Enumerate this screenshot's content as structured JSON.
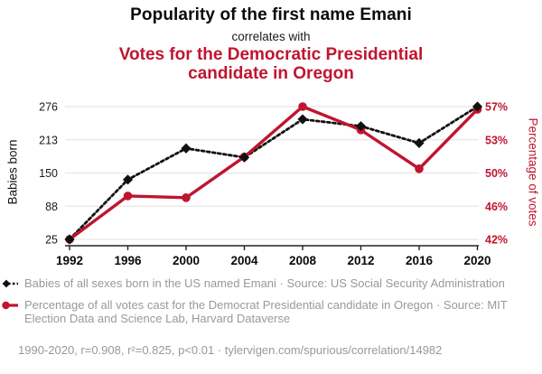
{
  "header": {
    "title": "Popularity of the first name Emani",
    "connector": "correlates with",
    "subtitle": "Votes for the Democratic Presidential candidate in Oregon"
  },
  "chart_data": {
    "type": "line",
    "x": [
      1992,
      1996,
      2000,
      2004,
      2008,
      2012,
      2016,
      2020
    ],
    "x_tick_labels": [
      "1992",
      "1996",
      "2000",
      "2004",
      "2008",
      "2012",
      "2016",
      "2020"
    ],
    "series": [
      {
        "name": "Babies of all sexes born in the US named Emani",
        "axis": "left",
        "color": "#111111",
        "line_style": "dotted",
        "marker": "diamond",
        "values": [
          25,
          138,
          197,
          180,
          252,
          239,
          207,
          276
        ]
      },
      {
        "name": "Percentage of all votes cast for the Democrat Presidential candidate in Oregon",
        "axis": "right",
        "color": "#c0152f",
        "line_style": "solid",
        "marker": "circle",
        "values": [
          42.48,
          47.15,
          46.96,
          51.35,
          56.75,
          54.24,
          50.07,
          56.45
        ]
      }
    ],
    "left_axis": {
      "label": "Babies born",
      "min": 25,
      "max": 276,
      "tick_labels": [
        "276",
        "213",
        "150",
        "88",
        "25"
      ]
    },
    "right_axis": {
      "label": "Percentage of votes",
      "min": 42.48,
      "max": 56.75,
      "tick_labels": [
        "57%",
        "53%",
        "50%",
        "46%",
        "42%"
      ]
    },
    "grid": true,
    "legend_position": "bottom"
  },
  "legend": {
    "items": [
      {
        "label": "Babies of all sexes born in the US named Emani · Source: US Social Security Administration"
      },
      {
        "label": "Percentage of all votes cast for the Democrat Presidential candidate in Oregon · Source: MIT Election Data and Science Lab, Harvard Dataverse"
      }
    ],
    "footnote": "1990-2020, r=0.908, r²=0.825, p<0.01 · tylervigen.com/spurious/correlation/14982"
  },
  "colors": {
    "accent_red": "#c0152f",
    "series_black": "#111111",
    "legend_gray": "#999999",
    "gridline": "#e7e7e7",
    "axis": "#222222"
  }
}
